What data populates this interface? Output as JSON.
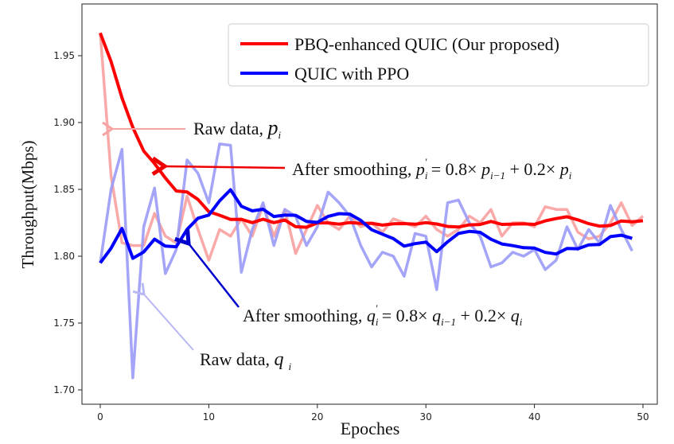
{
  "chart_data": {
    "type": "line",
    "xlabel": "Epoches",
    "ylabel": "Throughput(Mbps)",
    "xlim": [
      -2,
      51
    ],
    "ylim": [
      1.695,
      1.98
    ],
    "xticks": [
      "0",
      "10",
      "20",
      "30",
      "40",
      "50"
    ],
    "yticks": [
      "1.70",
      "1.75",
      "1.80",
      "1.85",
      "1.90",
      "1.95"
    ],
    "grid": false,
    "legend_position": "top-right",
    "smoothing_factor": 0.8,
    "series": [
      {
        "name": "PBQ-enhanced QUIC (Our proposed)",
        "color": "#ff0000",
        "raw_values": [
          1.967,
          1.86,
          1.81,
          1.808,
          1.808,
          1.832,
          1.815,
          1.81,
          1.845,
          1.82,
          1.797,
          1.82,
          1.815,
          1.828,
          1.815,
          1.838,
          1.815,
          1.835,
          1.802,
          1.82,
          1.838,
          1.825,
          1.82,
          1.83,
          1.822,
          1.825,
          1.818,
          1.828,
          1.825,
          1.822,
          1.83,
          1.82,
          1.815,
          1.82,
          1.83,
          1.825,
          1.835,
          1.815,
          1.825,
          1.825,
          1.822,
          1.837,
          1.835,
          1.835,
          1.818,
          1.813,
          1.815,
          1.825,
          1.84,
          1.823,
          1.83
        ]
      },
      {
        "name": "QUIC with PPO",
        "color": "#0000ff",
        "raw_values": [
          1.795,
          1.85,
          1.88,
          1.709,
          1.822,
          1.851,
          1.787,
          1.805,
          1.872,
          1.862,
          1.84,
          1.884,
          1.883,
          1.788,
          1.82,
          1.84,
          1.808,
          1.835,
          1.83,
          1.808,
          1.822,
          1.848,
          1.84,
          1.83,
          1.808,
          1.792,
          1.803,
          1.8,
          1.785,
          1.817,
          1.815,
          1.775,
          1.84,
          1.842,
          1.825,
          1.815,
          1.792,
          1.795,
          1.803,
          1.8,
          1.805,
          1.79,
          1.797,
          1.822,
          1.805,
          1.82,
          1.81,
          1.838,
          1.82,
          1.804
        ]
      }
    ],
    "annotations": {
      "raw_p": {
        "text": "Raw data, ",
        "var": "p",
        "sub": "i"
      },
      "smooth_p": {
        "text": "After smoothing, ",
        "lhs": "p",
        "lhs_sub": "i",
        "prime": "'",
        "eq": " = 0.8× ",
        "mid": "p",
        "mid_sub": "i−1",
        "plus": " + 0.2× ",
        "rhs": "p",
        "rhs_sub": "i"
      },
      "smooth_q": {
        "text": "After smoothing, ",
        "lhs": "q",
        "lhs_sub": "i",
        "prime": "'",
        "eq": " = 0.8× ",
        "mid": "q",
        "mid_sub": "i−1",
        "plus": " + 0.2× ",
        "rhs": "q",
        "rhs_sub": "i"
      },
      "raw_q": {
        "text": "Raw data, ",
        "var": "q",
        "sub": "i"
      }
    }
  }
}
